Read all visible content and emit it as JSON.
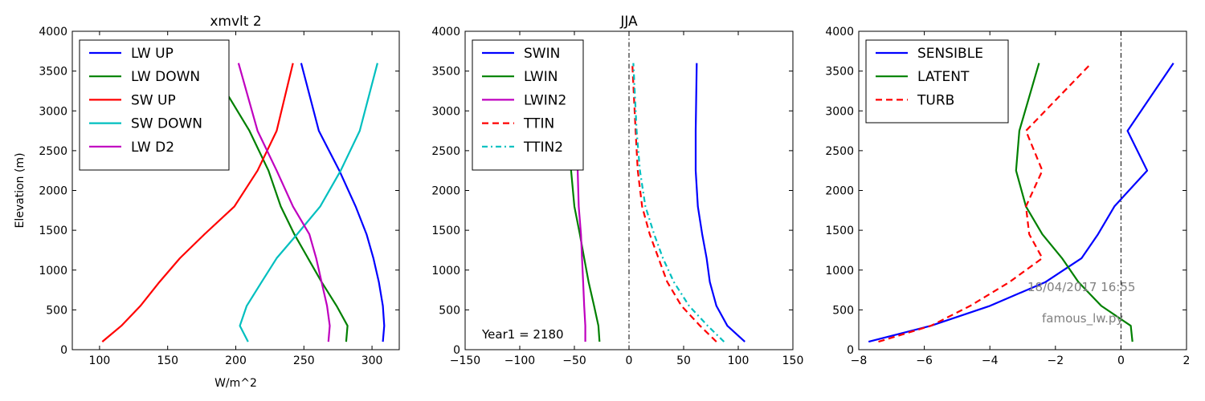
{
  "chart_data": [
    {
      "type": "line",
      "title": "xmvlt 2",
      "xlabel": "W/m^2",
      "ylabel": "Elevation (m)",
      "xlim": [
        80,
        320
      ],
      "ylim": [
        0,
        4000
      ],
      "xticks": [
        100,
        150,
        200,
        250,
        300
      ],
      "yticks": [
        0,
        500,
        1000,
        1500,
        2000,
        2500,
        3000,
        3500,
        4000
      ],
      "legend_position": "top-left",
      "y": [
        100,
        300,
        550,
        850,
        1150,
        1450,
        1800,
        2250,
        2750,
        3600
      ],
      "series": [
        {
          "name": "LW UP",
          "color": "#0000ff",
          "style": "solid",
          "x": [
            308,
            309,
            308,
            305,
            301,
            296,
            288,
            276,
            261,
            248
          ]
        },
        {
          "name": "LW DOWN",
          "color": "#008000",
          "style": "solid",
          "x": [
            281,
            282,
            274,
            263,
            253,
            243,
            233,
            224,
            210,
            180
          ]
        },
        {
          "name": "SW UP",
          "color": "#ff0000",
          "style": "solid",
          "x": [
            102,
            116,
            130,
            144,
            159,
            177,
            199,
            216,
            230,
            242
          ]
        },
        {
          "name": "SW DOWN",
          "color": "#00bfbf",
          "style": "solid",
          "x": [
            209,
            203,
            208,
            219,
            230,
            245,
            262,
            277,
            291,
            304
          ]
        },
        {
          "name": "LW D2",
          "color": "#bf00bf",
          "style": "solid",
          "x": [
            268,
            269,
            267,
            263,
            259,
            254,
            242,
            230,
            216,
            202
          ]
        }
      ]
    },
    {
      "type": "line",
      "title": "JJA",
      "xlabel": "",
      "ylabel": "",
      "xlim": [
        -150,
        150
      ],
      "ylim": [
        0,
        4000
      ],
      "xticks": [
        -150,
        -100,
        -50,
        0,
        50,
        100,
        150
      ],
      "yticks": [
        0,
        500,
        1000,
        1500,
        2000,
        2500,
        3000,
        3500,
        4000
      ],
      "legend_position": "top-left",
      "vline_x": 0,
      "annotation": "Year1 = 2180",
      "series": [
        {
          "name": "SWIN",
          "color": "#0000ff",
          "style": "solid",
          "y": [
            100,
            300,
            550,
            850,
            1150,
            1450,
            1800,
            2250,
            2750,
            3600
          ],
          "x": [
            106,
            90,
            80,
            74,
            71,
            67,
            63,
            61,
            61,
            62
          ]
        },
        {
          "name": "LWIN",
          "color": "#008000",
          "style": "solid",
          "y": [
            100,
            300,
            550,
            850,
            1150,
            1450,
            1800,
            2250,
            2500
          ],
          "x": [
            -27,
            -28,
            -32,
            -37,
            -41,
            -45,
            -50,
            -53,
            -53
          ]
        },
        {
          "name": "LWIN2",
          "color": "#bf00bf",
          "style": "solid",
          "y": [
            100,
            300,
            550,
            850,
            1150,
            1450,
            1800,
            2250,
            2500
          ],
          "x": [
            -40,
            -40,
            -41,
            -42,
            -43,
            -44,
            -46,
            -47,
            -47
          ]
        },
        {
          "name": "TTIN",
          "color": "#ff0000",
          "style": "dashed",
          "y": [
            100,
            300,
            550,
            850,
            1150,
            1450,
            1800,
            2250,
            2750,
            3600
          ],
          "x": [
            80,
            65,
            48,
            35,
            27,
            19,
            12,
            8,
            6,
            3
          ]
        },
        {
          "name": "TTIN2",
          "color": "#00bfbf",
          "style": "dashdot",
          "y": [
            100,
            300,
            550,
            850,
            1150,
            1450,
            1800,
            2250,
            2750,
            3600
          ],
          "x": [
            87,
            72,
            55,
            41,
            31,
            23,
            15,
            10,
            7,
            4
          ]
        }
      ]
    },
    {
      "type": "line",
      "title": "",
      "xlabel": "",
      "ylabel": "",
      "xlim": [
        -8,
        2
      ],
      "ylim": [
        0,
        4000
      ],
      "xticks": [
        -8,
        -6,
        -4,
        -2,
        0,
        2
      ],
      "yticks": [
        0,
        500,
        1000,
        1500,
        2000,
        2500,
        3000,
        3500,
        4000
      ],
      "legend_position": "top-left",
      "vline_x": 0,
      "annotations": [
        "18/04/2017 16:55",
        "famous_lw.py"
      ],
      "series": [
        {
          "name": "SENSIBLE",
          "color": "#0000ff",
          "style": "solid",
          "y": [
            100,
            300,
            550,
            850,
            1150,
            1450,
            1800,
            2250,
            2750,
            3600
          ],
          "x": [
            -7.7,
            -5.8,
            -4.0,
            -2.3,
            -1.2,
            -0.7,
            -0.2,
            0.8,
            0.2,
            1.6
          ]
        },
        {
          "name": "LATENT",
          "color": "#008000",
          "style": "solid",
          "y": [
            100,
            300,
            550,
            850,
            1150,
            1450,
            1800,
            2250,
            2750,
            3600
          ],
          "x": [
            0.35,
            0.3,
            -0.6,
            -1.3,
            -1.8,
            -2.4,
            -2.9,
            -3.2,
            -3.1,
            -2.5
          ]
        },
        {
          "name": "TURB",
          "color": "#ff0000",
          "style": "dashed",
          "y": [
            100,
            300,
            550,
            850,
            1150,
            1450,
            1800,
            2250,
            2750,
            3600
          ],
          "x": [
            -7.4,
            -5.8,
            -4.6,
            -3.4,
            -2.4,
            -2.8,
            -2.9,
            -2.4,
            -2.9,
            -0.9
          ]
        }
      ]
    }
  ]
}
